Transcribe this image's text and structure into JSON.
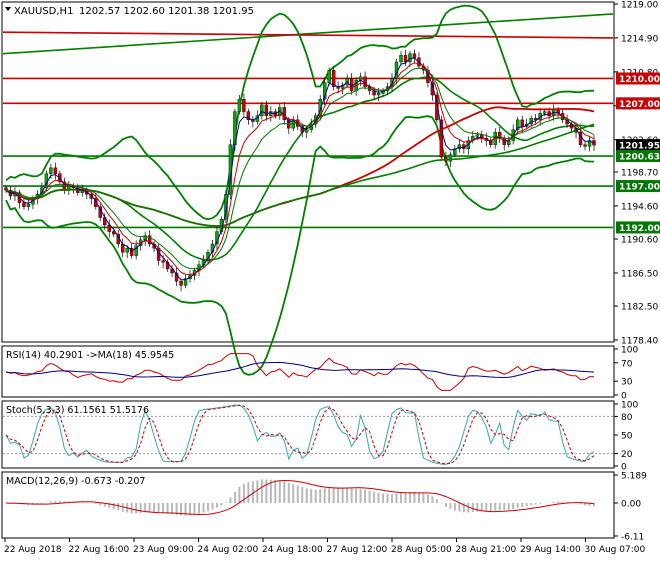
{
  "header": {
    "symbol": "XAUUSD,H1",
    "ohlc": "1202.57 1202.60 1201.38 1201.95"
  },
  "price_axis": {
    "ticks": [
      "1219.00",
      "1214.90",
      "1210.80",
      "1206.70",
      "1202.60",
      "1198.70",
      "1194.60",
      "1190.60",
      "1186.50",
      "1182.50",
      "1178.40"
    ],
    "levels": [
      {
        "label": "1210.00",
        "value": 1210.0,
        "color": "#cc0000"
      },
      {
        "label": "1207.00",
        "value": 1207.0,
        "color": "#cc0000"
      },
      {
        "label": "1201.95",
        "value": 1201.95,
        "color": "#000000"
      },
      {
        "label": "1200.63",
        "value": 1200.63,
        "color": "#007700"
      },
      {
        "label": "1197.00",
        "value": 1197.0,
        "color": "#007700"
      },
      {
        "label": "1192.00",
        "value": 1192.0,
        "color": "#007700"
      }
    ]
  },
  "rsi": {
    "label": "RSI(14) 40.2901  ->MA(18) 45.9545",
    "ticks": [
      "100",
      "70",
      "30",
      "0"
    ]
  },
  "stoch": {
    "label": "Stoch(5,3,3) 61.1561 51.5176",
    "ticks": [
      "100",
      "80",
      "50",
      "20",
      "0"
    ]
  },
  "macd": {
    "label": "MACD(12,26,9) -0.673 -0.207",
    "ticks": [
      "5.189",
      "0.00",
      "-6.11"
    ]
  },
  "time_axis": {
    "labels": [
      "22 Aug 2018",
      "22 Aug 16:00",
      "23 Aug 09:00",
      "24 Aug 02:00",
      "24 Aug 18:00",
      "27 Aug 12:00",
      "28 Aug 05:00",
      "28 Aug 21:00",
      "29 Aug 14:00",
      "30 Aug 07:00"
    ]
  },
  "colors": {
    "bull": "#00aa00",
    "bear": "#cc0000",
    "band": "#008000",
    "level_red": "#cc0000",
    "level_green": "#007700"
  },
  "chart_data": {
    "type": "candlestick",
    "title": "XAUUSD,H1",
    "ylim": [
      1178.4,
      1219.0
    ],
    "last": {
      "open": 1202.57,
      "high": 1202.6,
      "low": 1201.38,
      "close": 1201.95
    },
    "closes": [
      1196.5,
      1195.8,
      1196.2,
      1195.0,
      1194.5,
      1194.8,
      1195.5,
      1196.0,
      1196.8,
      1198.5,
      1199.2,
      1198.5,
      1197.5,
      1196.5,
      1197.0,
      1196.8,
      1196.2,
      1196.5,
      1196.0,
      1195.5,
      1194.5,
      1193.2,
      1192.3,
      1191.5,
      1191.2,
      1190.0,
      1189.0,
      1189.5,
      1188.6,
      1189.8,
      1190.5,
      1191.0,
      1190.0,
      1189.5,
      1188.0,
      1187.8,
      1187.0,
      1186.5,
      1185.5,
      1185.0,
      1185.8,
      1186.2,
      1186.8,
      1187.5,
      1188.0,
      1189.0,
      1190.0,
      1191.5,
      1193.0,
      1196.0,
      1202.0,
      1206.0,
      1207.5,
      1206.0,
      1205.0,
      1204.8,
      1205.5,
      1206.8,
      1205.5,
      1206.0,
      1205.5,
      1206.5,
      1205.0,
      1204.0,
      1205.0,
      1204.2,
      1203.5,
      1203.8,
      1204.5,
      1205.5,
      1207.5,
      1209.5,
      1211.0,
      1209.0,
      1208.8,
      1209.2,
      1210.0,
      1208.5,
      1209.8,
      1210.2,
      1209.0,
      1208.5,
      1208.0,
      1208.2,
      1208.5,
      1209.0,
      1210.0,
      1212.0,
      1212.8,
      1212.0,
      1213.0,
      1212.5,
      1211.5,
      1211.0,
      1209.5,
      1208.0,
      1205.0,
      1200.5,
      1200.0,
      1200.8,
      1201.5,
      1202.0,
      1201.5,
      1202.5,
      1203.0,
      1203.2,
      1202.8,
      1202.5,
      1202.0,
      1203.5,
      1202.8,
      1202.0,
      1202.5,
      1203.8,
      1205.0,
      1204.2,
      1204.5,
      1205.2,
      1205.0,
      1205.8,
      1206.0,
      1205.5,
      1206.2,
      1205.8,
      1205.0,
      1204.5,
      1204.0,
      1203.5,
      1202.0,
      1201.8,
      1202.5,
      1201.95
    ],
    "indicators": {
      "rsi": {
        "period": 14,
        "value": 40.2901,
        "ma_period": 18,
        "ma": 45.9545
      },
      "stochastic": {
        "params": "5,3,3",
        "k": 61.1561,
        "d": 51.5176
      },
      "macd": {
        "params": "12,26,9",
        "macd": -0.673,
        "signal": -0.207
      }
    }
  }
}
